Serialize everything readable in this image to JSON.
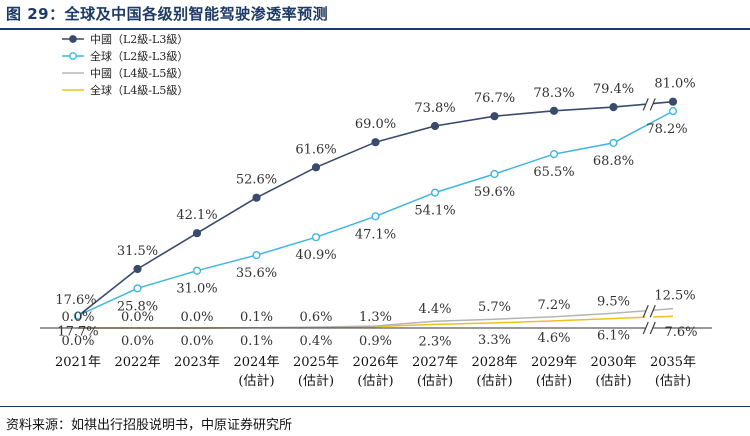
{
  "figure": {
    "title": "图 29：全球及中国各级别智能驾驶渗透率预测",
    "source": "资料来源：如祺出行招股说明书，中原证券研究所"
  },
  "chart_data": {
    "type": "line",
    "categories": [
      "2021年",
      "2022年",
      "2023年",
      "2024年(估計)",
      "2025年(估計)",
      "2026年(估計)",
      "2027年(估計)",
      "2028年(估計)",
      "2029年(估計)",
      "2030年(估計)",
      "2035年(估計)"
    ],
    "category_lines": [
      [
        "2021年"
      ],
      [
        "2022年"
      ],
      [
        "2023年"
      ],
      [
        "2024年",
        "(估計)"
      ],
      [
        "2025年",
        "(估計)"
      ],
      [
        "2026年",
        "(估計)"
      ],
      [
        "2027年",
        "(估計)"
      ],
      [
        "2028年",
        "(估計)"
      ],
      [
        "2029年",
        "(估計)"
      ],
      [
        "2030年",
        "(估計)"
      ],
      [
        "2035年",
        "(估計)"
      ]
    ],
    "axis_break": "between 2030年 and 2035年",
    "ylim": [
      0,
      85
    ],
    "grid": false,
    "legend_position": "top-left",
    "series": [
      {
        "name": "中國（L2級-L3級）",
        "color": "#3a4a6b",
        "marker": "filled-circle",
        "values": [
          17.6,
          31.5,
          42.1,
          52.6,
          61.6,
          69.0,
          73.8,
          76.7,
          78.3,
          79.4,
          81.0
        ],
        "labels": [
          "17.6%",
          "31.5%",
          "42.1%",
          "52.6%",
          "61.6%",
          "69.0%",
          "73.8%",
          "76.7%",
          "78.3%",
          "79.4%",
          "81.0%"
        ]
      },
      {
        "name": "全球（L2級-L3級）",
        "color": "#3fb6e0",
        "marker": "open-circle",
        "values": [
          17.7,
          25.8,
          31.0,
          35.6,
          40.9,
          47.1,
          54.1,
          59.6,
          65.5,
          68.8,
          78.2
        ],
        "labels": [
          "17.7%",
          "25.8%",
          "31.0%",
          "35.6%",
          "40.9%",
          "47.1%",
          "54.1%",
          "59.6%",
          "65.5%",
          "68.8%",
          "78.2%"
        ]
      },
      {
        "name": "中國（L4級-L5級）",
        "color": "#b5b5b5",
        "marker": "none",
        "values": [
          0.0,
          0.0,
          0.0,
          0.1,
          0.6,
          1.3,
          4.4,
          5.7,
          7.2,
          9.5,
          12.5
        ],
        "labels": [
          "0.0%",
          "0.0%",
          "0.0%",
          "0.1%",
          "0.6%",
          "1.3%",
          "4.4%",
          "5.7%",
          "7.2%",
          "9.5%",
          "12.5%"
        ]
      },
      {
        "name": "全球（L4級-L5級）",
        "color": "#f0c020",
        "marker": "none",
        "values": [
          0.0,
          0.0,
          0.0,
          0.1,
          0.4,
          0.9,
          2.3,
          3.3,
          4.6,
          6.1,
          7.6
        ],
        "labels": [
          "0.0%",
          "0.0%",
          "0.0%",
          "0.1%",
          "0.4%",
          "0.9%",
          "2.3%",
          "3.3%",
          "4.6%",
          "6.1%",
          "7.6%"
        ]
      }
    ]
  }
}
